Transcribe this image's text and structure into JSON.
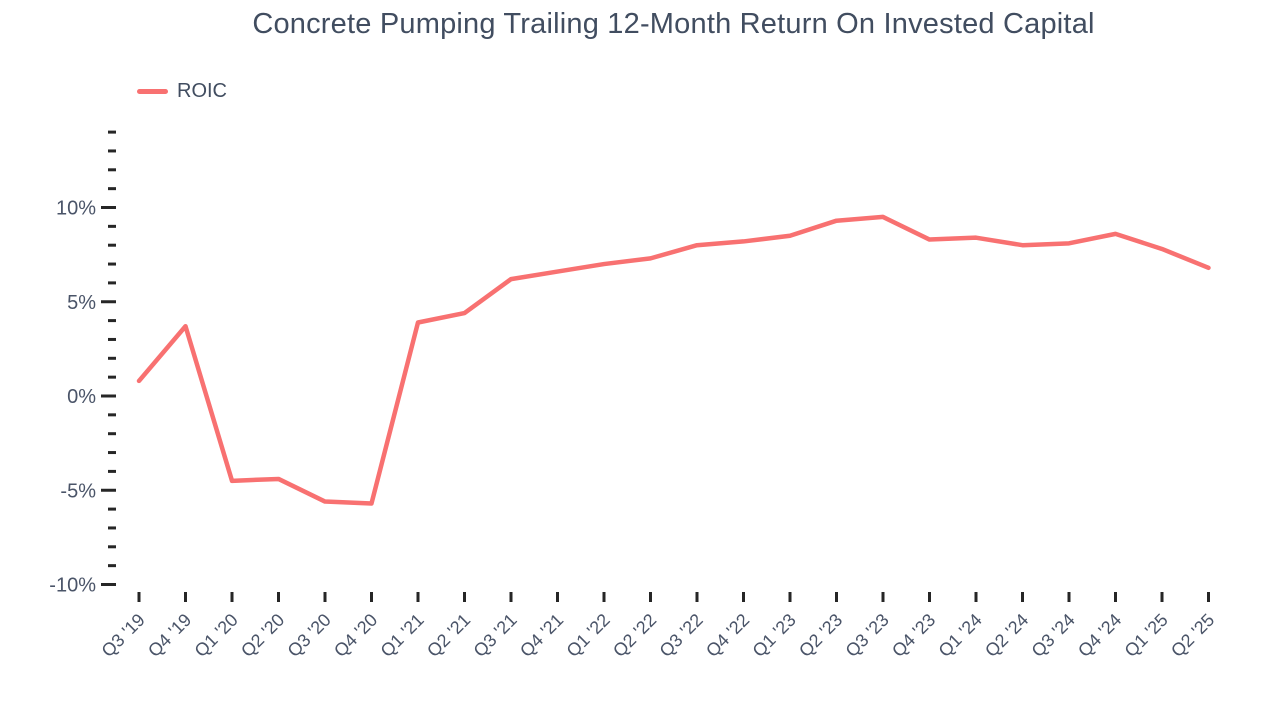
{
  "chart_data": {
    "type": "line",
    "title": "Concrete Pumping Trailing 12-Month Return On Invested Capital",
    "categories": [
      "Q3 '19",
      "Q4 '19",
      "Q1 '20",
      "Q2 '20",
      "Q3 '20",
      "Q4 '20",
      "Q1 '21",
      "Q2 '21",
      "Q3 '21",
      "Q4 '21",
      "Q1 '22",
      "Q2 '22",
      "Q3 '22",
      "Q4 '22",
      "Q1 '23",
      "Q2 '23",
      "Q3 '23",
      "Q4 '23",
      "Q1 '24",
      "Q2 '24",
      "Q3 '24",
      "Q4 '24",
      "Q1 '25",
      "Q2 '25"
    ],
    "series": [
      {
        "name": "ROIC",
        "color": "#F87171",
        "values": [
          0.8,
          3.7,
          -4.5,
          -4.4,
          -5.6,
          -5.7,
          3.9,
          4.4,
          6.2,
          6.6,
          7.0,
          7.3,
          8.0,
          8.2,
          8.5,
          9.3,
          9.5,
          8.3,
          8.4,
          8.0,
          8.1,
          8.6,
          7.8,
          6.8
        ]
      }
    ],
    "xlabel": "",
    "ylabel": "",
    "ylim": [
      -10,
      14
    ],
    "ytick_step": 1,
    "yticks_labeled": [
      {
        "value": 10,
        "label": "10%"
      },
      {
        "value": 5,
        "label": "5%"
      },
      {
        "value": 0,
        "label": "0%"
      },
      {
        "value": -5,
        "label": "-5%"
      },
      {
        "value": -10,
        "label": "-10%"
      }
    ],
    "grid": false,
    "legend_position": "top-left",
    "colors": {
      "line": "#F87171",
      "title_text": "#414D60",
      "axis_label_text": "#4A5468",
      "tick_mark": "#262626",
      "background": "#FFFFFF"
    }
  }
}
